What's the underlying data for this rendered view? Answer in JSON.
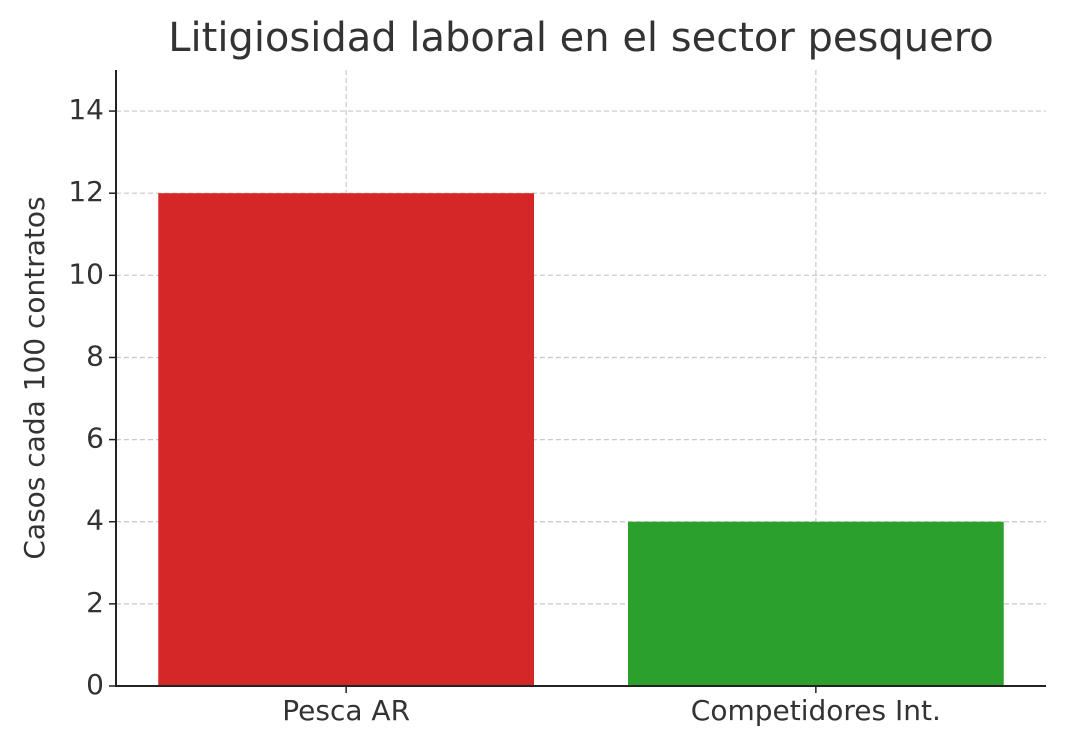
{
  "chart_data": {
    "type": "bar",
    "title": "Litigiosidad laboral en el sector pesquero",
    "y_label": "Casos cada 100 contratos",
    "categories": [
      "Pesca AR",
      "Competidores Int."
    ],
    "values": [
      12,
      4
    ],
    "colors": [
      "#d62728",
      "#2ca02c"
    ],
    "ylim": [
      0,
      15
    ],
    "yticks": [
      0,
      2,
      4,
      6,
      8,
      10,
      12,
      14
    ],
    "grid": true
  }
}
